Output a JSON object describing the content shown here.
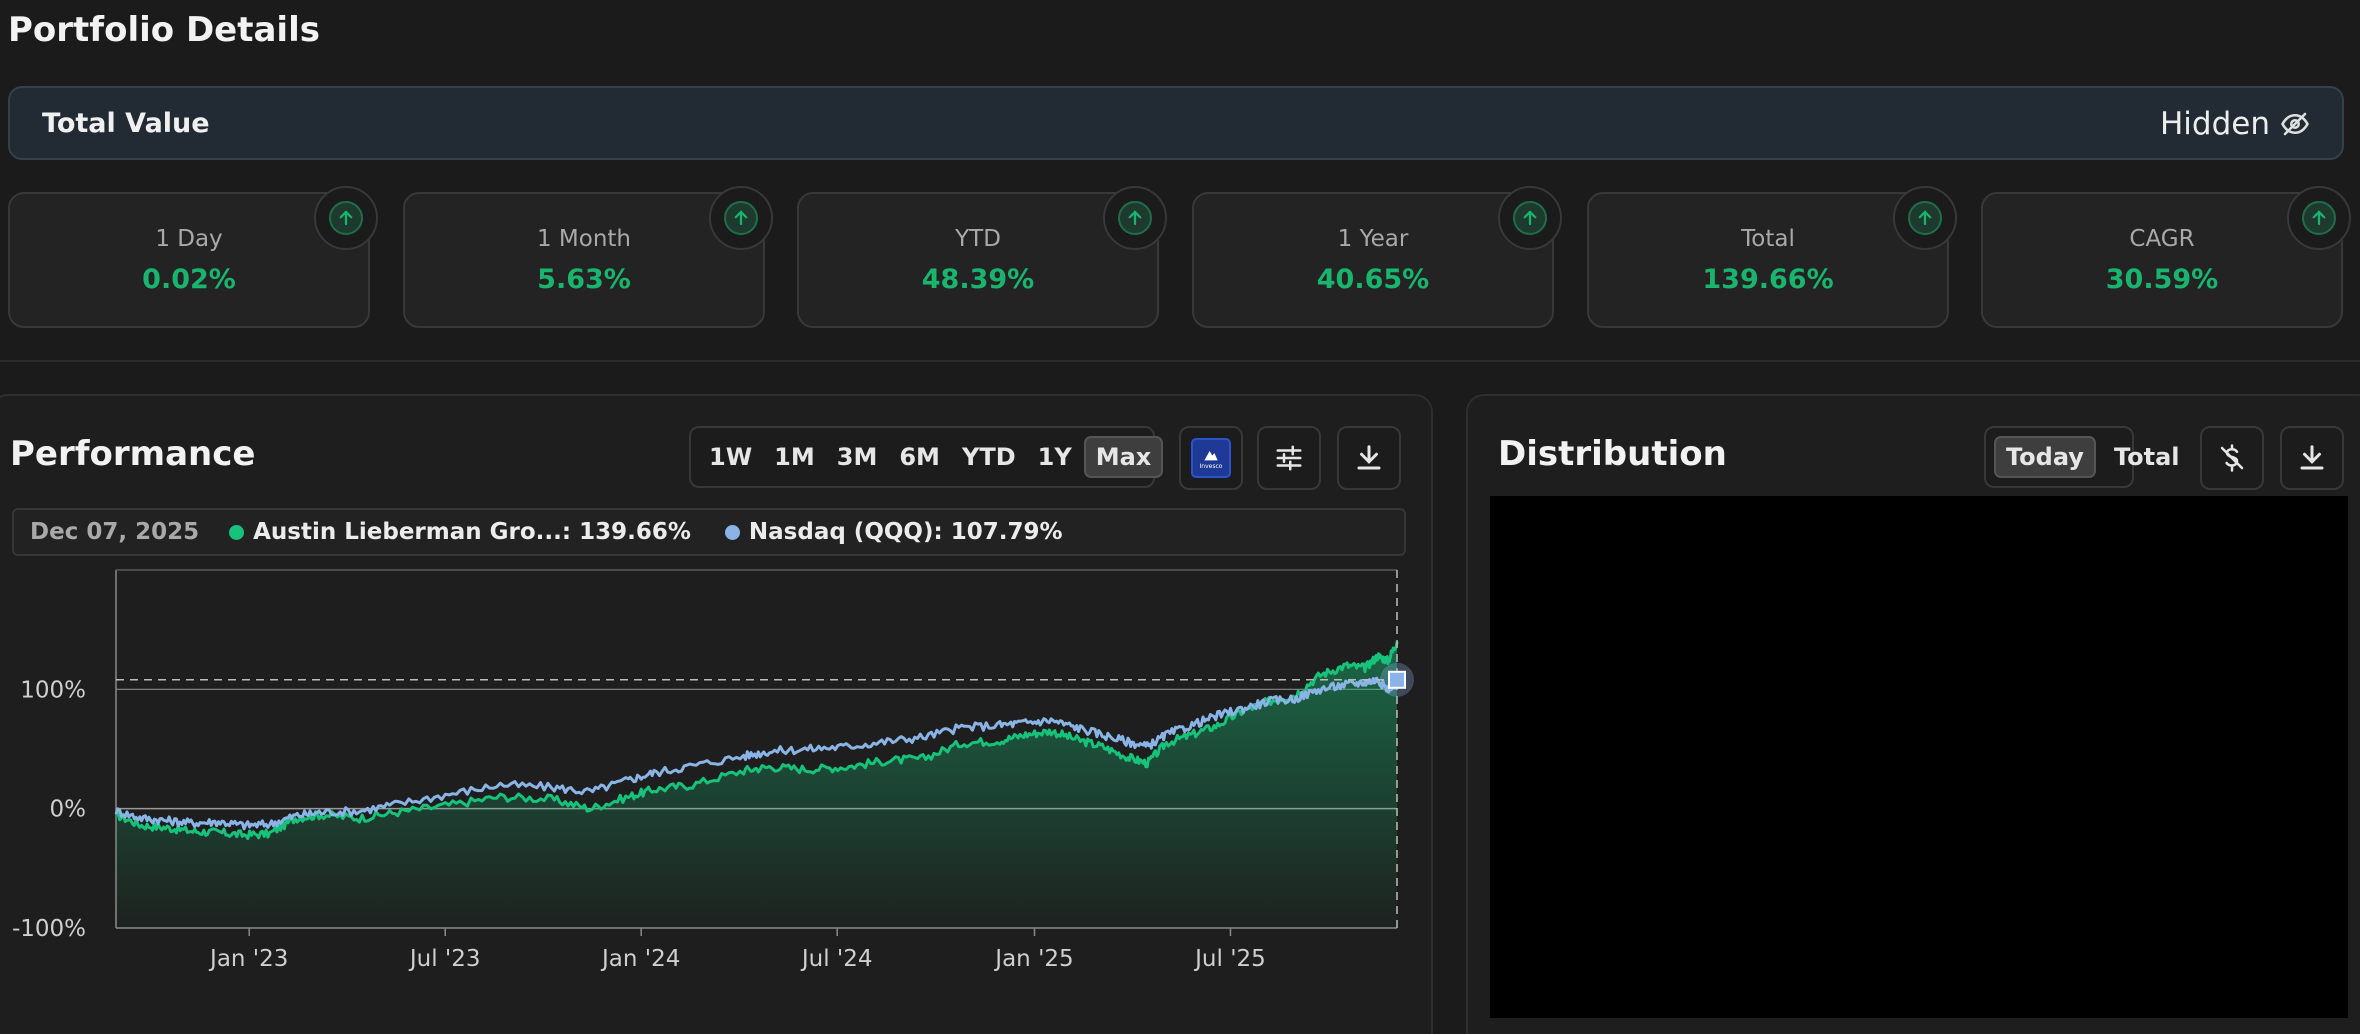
{
  "page": {
    "title": "Portfolio Details"
  },
  "total_value": {
    "label": "Total Value",
    "value": "Hidden",
    "icon": "eye-off-icon"
  },
  "stats": [
    {
      "label": "1 Day",
      "value": "0.02%"
    },
    {
      "label": "1 Month",
      "value": "5.63%"
    },
    {
      "label": "YTD",
      "value": "48.39%"
    },
    {
      "label": "1 Year",
      "value": "40.65%"
    },
    {
      "label": "Total",
      "value": "139.66%"
    },
    {
      "label": "CAGR",
      "value": "30.59%"
    }
  ],
  "performance": {
    "title": "Performance",
    "ranges": [
      "1W",
      "1M",
      "3M",
      "6M",
      "YTD",
      "1Y",
      "Max"
    ],
    "active_range": "Max",
    "benchmark_logo_text": "Invesco",
    "legend": {
      "date": "Dec 07, 2025",
      "items": [
        {
          "label": "Austin Lieberman Gro...: 139.66%",
          "color": "#17c27a"
        },
        {
          "label": "Nasdaq (QQQ): 107.79%",
          "color": "#8ab4e6"
        }
      ]
    }
  },
  "distribution": {
    "title": "Distribution",
    "toggle": [
      "Today",
      "Total"
    ],
    "active": "Today"
  },
  "colors": {
    "accent_green": "#19b46e",
    "benchmark_blue": "#8ab4e6"
  },
  "chart_data": {
    "type": "line",
    "x_ticks": [
      "Jan '23",
      "Jul '23",
      "Jan '24",
      "Jul '24",
      "Jan '25",
      "Jul '25"
    ],
    "y_ticks": [
      "100%",
      "0%",
      "-100%"
    ],
    "ylim": [
      -100,
      200
    ],
    "grid": false,
    "series": [
      {
        "name": "Austin Lieberman Gro...",
        "color": "#17c27a",
        "area": true,
        "points": [
          [
            0.0,
            -5
          ],
          [
            0.02,
            -14
          ],
          [
            0.04,
            -16
          ],
          [
            0.06,
            -19
          ],
          [
            0.08,
            -20
          ],
          [
            0.1,
            -22
          ],
          [
            0.12,
            -21
          ],
          [
            0.14,
            -8
          ],
          [
            0.16,
            -5
          ],
          [
            0.19,
            -8
          ],
          [
            0.22,
            -3
          ],
          [
            0.26,
            3
          ],
          [
            0.3,
            10
          ],
          [
            0.34,
            8
          ],
          [
            0.37,
            0
          ],
          [
            0.4,
            10
          ],
          [
            0.42,
            16
          ],
          [
            0.45,
            20
          ],
          [
            0.49,
            32
          ],
          [
            0.51,
            35
          ],
          [
            0.54,
            33
          ],
          [
            0.57,
            35
          ],
          [
            0.6,
            40
          ],
          [
            0.63,
            42
          ],
          [
            0.66,
            55
          ],
          [
            0.69,
            57
          ],
          [
            0.71,
            62
          ],
          [
            0.73,
            65
          ],
          [
            0.75,
            58
          ],
          [
            0.77,
            52
          ],
          [
            0.79,
            43
          ],
          [
            0.805,
            38
          ],
          [
            0.82,
            55
          ],
          [
            0.84,
            62
          ],
          [
            0.86,
            70
          ],
          [
            0.88,
            82
          ],
          [
            0.9,
            90
          ],
          [
            0.92,
            95
          ],
          [
            0.94,
            112
          ],
          [
            0.96,
            120
          ],
          [
            0.975,
            118
          ],
          [
            0.985,
            128
          ],
          [
            0.993,
            124
          ],
          [
            1.0,
            140
          ]
        ]
      },
      {
        "name": "Nasdaq (QQQ)",
        "color": "#8ab4e6",
        "area": false,
        "points": [
          [
            0.0,
            -2
          ],
          [
            0.02,
            -8
          ],
          [
            0.04,
            -10
          ],
          [
            0.06,
            -12
          ],
          [
            0.08,
            -11
          ],
          [
            0.1,
            -14
          ],
          [
            0.12,
            -13
          ],
          [
            0.14,
            -6
          ],
          [
            0.16,
            -3
          ],
          [
            0.19,
            -2
          ],
          [
            0.22,
            4
          ],
          [
            0.26,
            12
          ],
          [
            0.3,
            20
          ],
          [
            0.34,
            18
          ],
          [
            0.37,
            14
          ],
          [
            0.4,
            24
          ],
          [
            0.42,
            30
          ],
          [
            0.45,
            36
          ],
          [
            0.49,
            44
          ],
          [
            0.51,
            48
          ],
          [
            0.54,
            50
          ],
          [
            0.57,
            52
          ],
          [
            0.6,
            56
          ],
          [
            0.63,
            60
          ],
          [
            0.66,
            68
          ],
          [
            0.69,
            70
          ],
          [
            0.71,
            72
          ],
          [
            0.73,
            74
          ],
          [
            0.75,
            68
          ],
          [
            0.77,
            62
          ],
          [
            0.79,
            56
          ],
          [
            0.805,
            52
          ],
          [
            0.82,
            62
          ],
          [
            0.84,
            70
          ],
          [
            0.86,
            78
          ],
          [
            0.88,
            84
          ],
          [
            0.9,
            90
          ],
          [
            0.92,
            92
          ],
          [
            0.94,
            100
          ],
          [
            0.96,
            104
          ],
          [
            0.975,
            106
          ],
          [
            0.985,
            108
          ],
          [
            0.993,
            100
          ],
          [
            1.0,
            108
          ]
        ]
      }
    ]
  }
}
